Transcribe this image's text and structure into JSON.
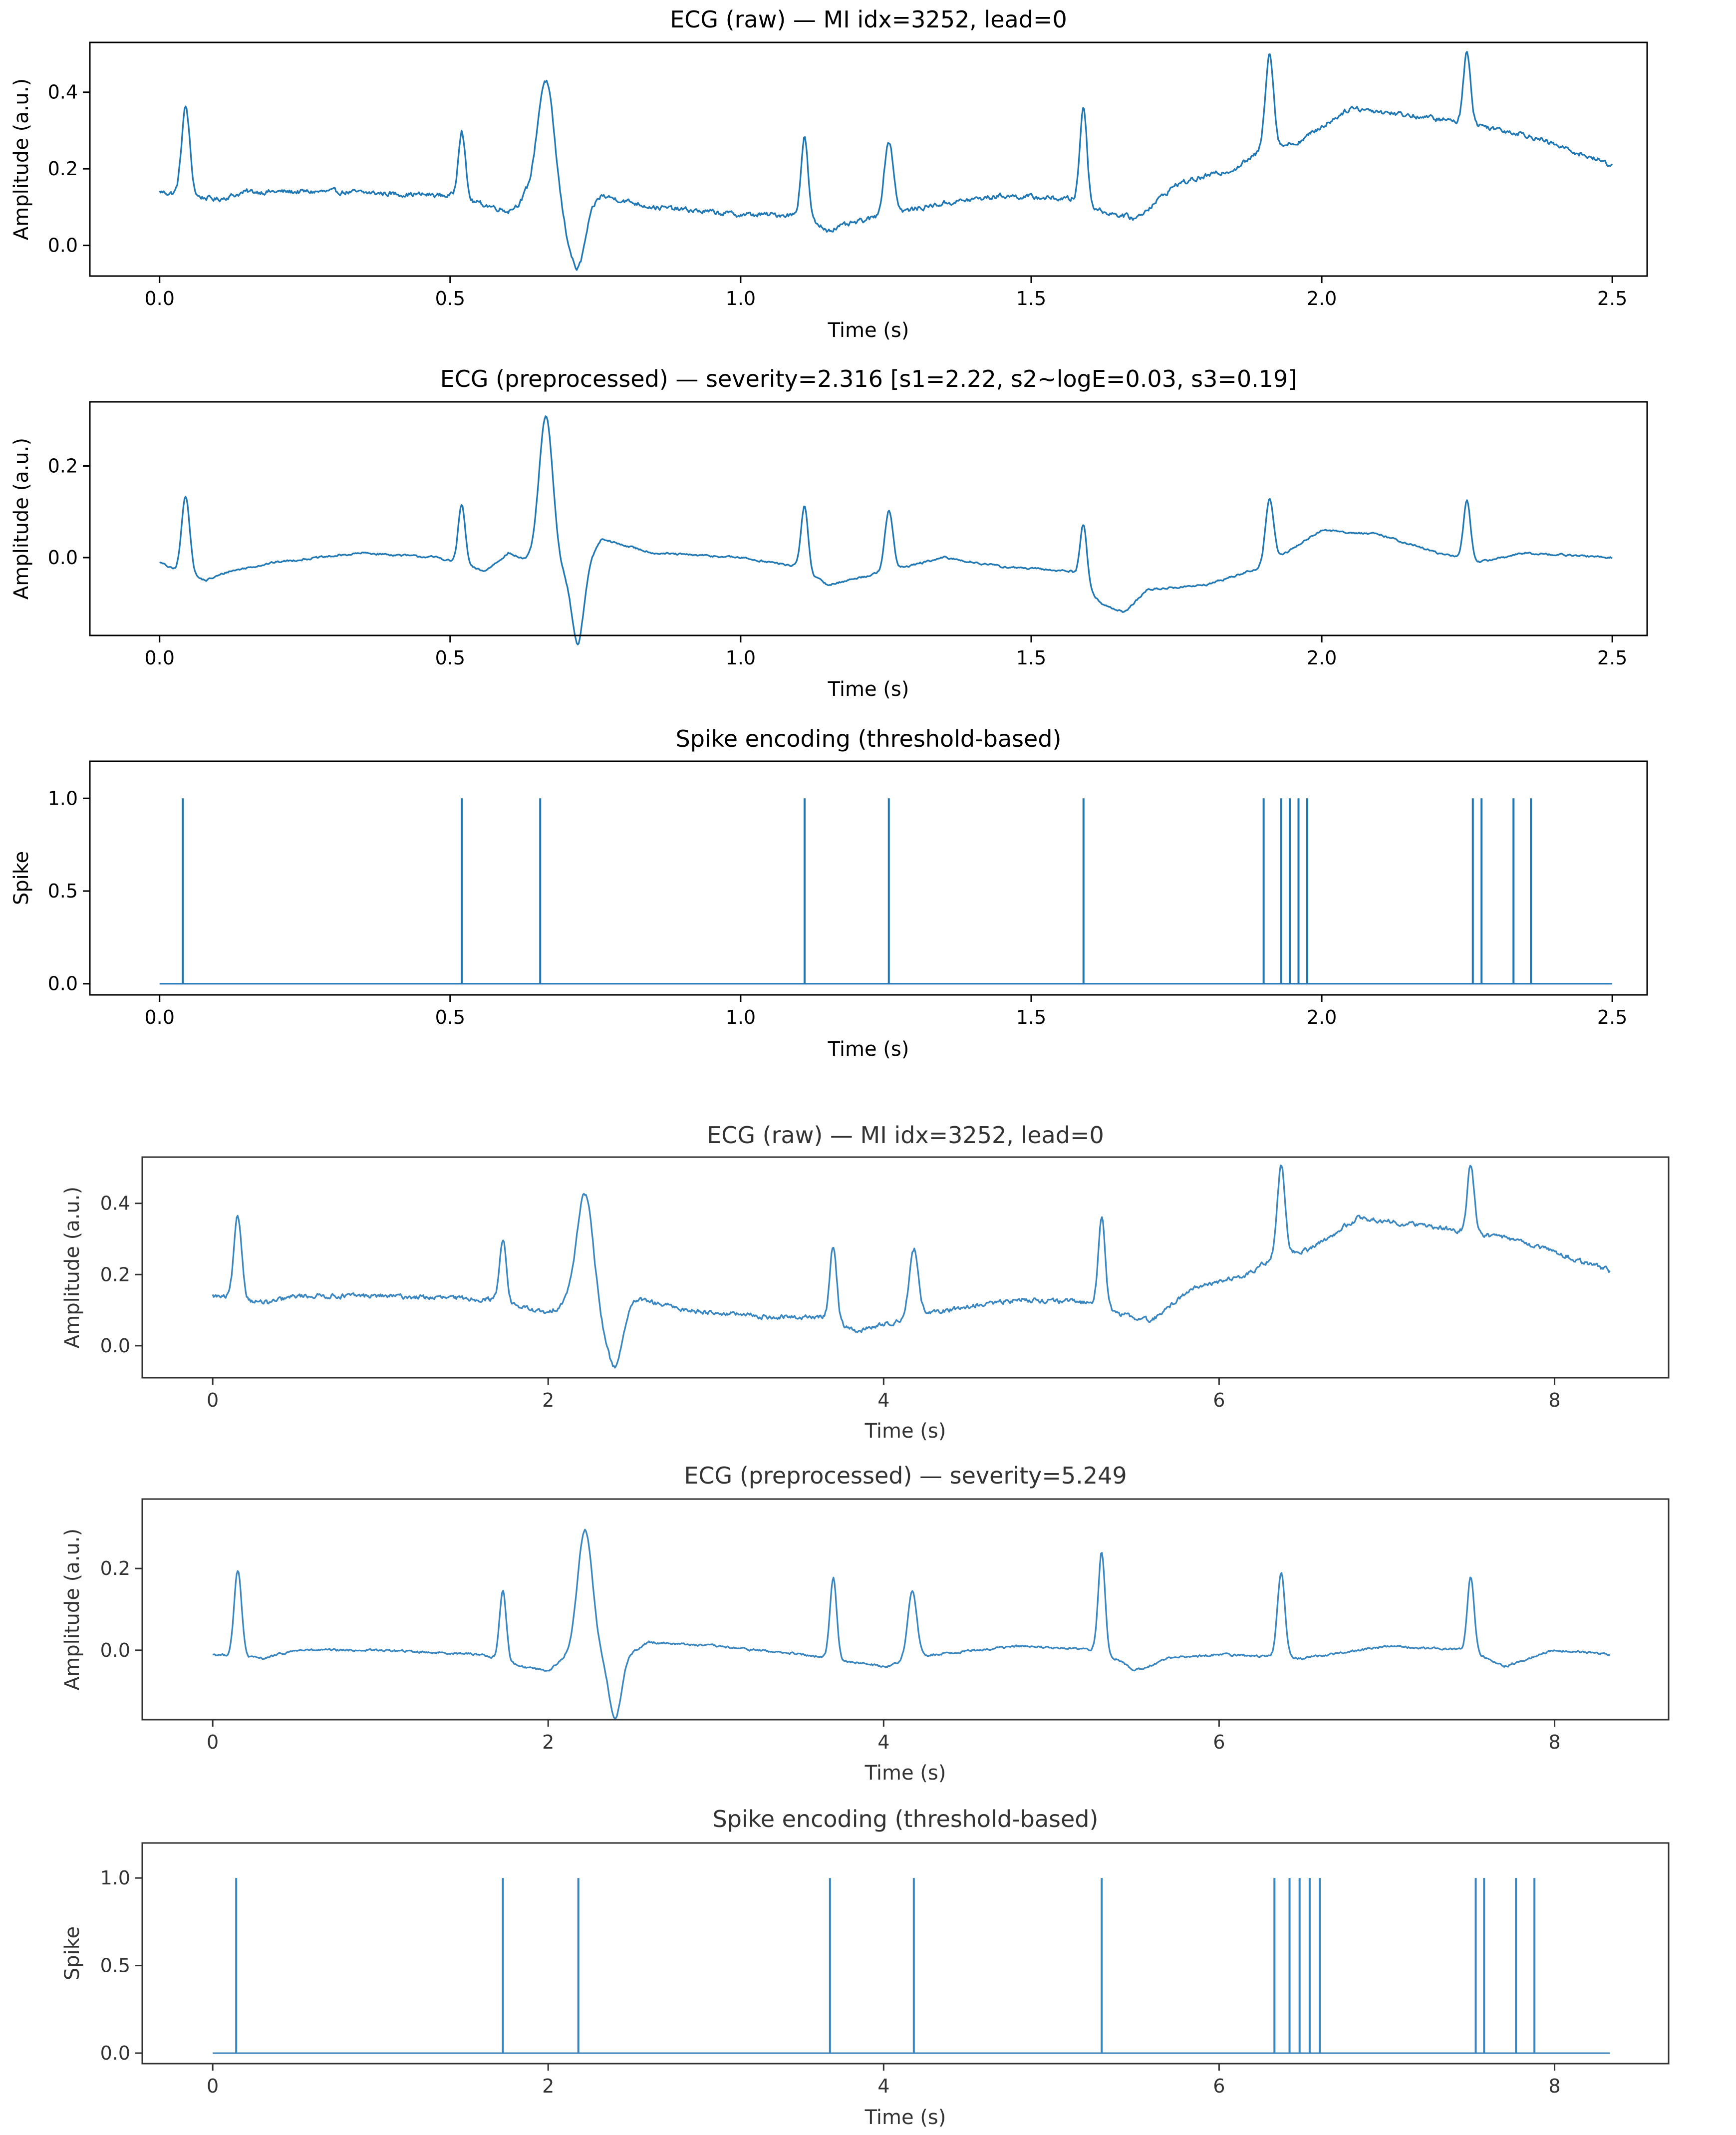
{
  "colors": {
    "line": "#1f77b4",
    "line_soft": "#3a86c0",
    "axes": "#000000",
    "background": "#ffffff"
  },
  "chart_data": [
    {
      "type": "line",
      "id": "top_raw",
      "title": "ECG (raw) — MI idx=3252, lead=0",
      "xlabel": "Time (s)",
      "ylabel": "Amplitude (a.u.)",
      "xlim": [
        -0.12,
        2.56
      ],
      "ylim": [
        -0.08,
        0.53
      ],
      "xticks": [
        0.0,
        0.5,
        1.0,
        1.5,
        2.0,
        2.5
      ],
      "xtick_labels": [
        "0.0",
        "0.5",
        "1.0",
        "1.5",
        "2.0",
        "2.5"
      ],
      "yticks": [
        0.0,
        0.2,
        0.4
      ],
      "ytick_labels": [
        "0.0",
        "0.2",
        "0.4"
      ],
      "x_end": 2.5,
      "noise": 0.012,
      "baseline": [
        [
          0,
          0.14
        ],
        [
          0.05,
          0.13
        ],
        [
          0.1,
          0.12
        ],
        [
          0.15,
          0.14
        ],
        [
          0.3,
          0.14
        ],
        [
          0.5,
          0.13
        ],
        [
          0.55,
          0.11
        ],
        [
          0.6,
          0.09
        ],
        [
          0.63,
          0.12
        ],
        [
          0.7,
          0.04
        ],
        [
          0.76,
          0.13
        ],
        [
          0.85,
          0.1
        ],
        [
          1.0,
          0.08
        ],
        [
          1.1,
          0.08
        ],
        [
          1.15,
          0.04
        ],
        [
          1.25,
          0.08
        ],
        [
          1.35,
          0.11
        ],
        [
          1.45,
          0.13
        ],
        [
          1.58,
          0.12
        ],
        [
          1.62,
          0.09
        ],
        [
          1.68,
          0.07
        ],
        [
          1.75,
          0.16
        ],
        [
          1.85,
          0.2
        ],
        [
          1.9,
          0.25
        ],
        [
          1.96,
          0.27
        ],
        [
          2.0,
          0.31
        ],
        [
          2.05,
          0.36
        ],
        [
          2.15,
          0.34
        ],
        [
          2.25,
          0.32
        ],
        [
          2.35,
          0.29
        ],
        [
          2.5,
          0.21
        ]
      ],
      "peaks": [
        [
          0.045,
          0.23,
          0.007
        ],
        [
          0.52,
          0.18,
          0.006
        ],
        [
          0.665,
          0.35,
          0.015
        ],
        [
          0.72,
          -0.13,
          0.012
        ],
        [
          1.11,
          0.21,
          0.006
        ],
        [
          1.255,
          0.19,
          0.008
        ],
        [
          1.59,
          0.25,
          0.006
        ],
        [
          1.91,
          0.25,
          0.007
        ],
        [
          2.25,
          0.19,
          0.006
        ]
      ]
    },
    {
      "type": "line",
      "id": "top_pre",
      "title": "ECG (preprocessed) — severity=2.316  [s1=2.22, s2~logE=0.03, s3=0.19]",
      "xlabel": "Time (s)",
      "ylabel": "Amplitude (a.u.)",
      "xlim": [
        -0.12,
        2.56
      ],
      "ylim": [
        -0.17,
        0.34
      ],
      "xticks": [
        0.0,
        0.5,
        1.0,
        1.5,
        2.0,
        2.5
      ],
      "xtick_labels": [
        "0.0",
        "0.5",
        "1.0",
        "1.5",
        "2.0",
        "2.5"
      ],
      "yticks": [
        0.0,
        0.2
      ],
      "ytick_labels": [
        "0.0",
        "0.2"
      ],
      "x_end": 2.5,
      "noise": 0.004,
      "baseline": [
        [
          0,
          -0.01
        ],
        [
          0.03,
          -0.03
        ],
        [
          0.08,
          -0.05
        ],
        [
          0.12,
          -0.03
        ],
        [
          0.2,
          -0.01
        ],
        [
          0.35,
          0.01
        ],
        [
          0.48,
          0.0
        ],
        [
          0.56,
          -0.03
        ],
        [
          0.6,
          0.01
        ],
        [
          0.72,
          -0.05
        ],
        [
          0.76,
          0.04
        ],
        [
          0.85,
          0.01
        ],
        [
          1.0,
          0.0
        ],
        [
          1.1,
          -0.02
        ],
        [
          1.15,
          -0.06
        ],
        [
          1.25,
          -0.03
        ],
        [
          1.35,
          0.0
        ],
        [
          1.45,
          -0.02
        ],
        [
          1.57,
          -0.03
        ],
        [
          1.62,
          -0.1
        ],
        [
          1.66,
          -0.12
        ],
        [
          1.7,
          -0.07
        ],
        [
          1.8,
          -0.06
        ],
        [
          1.9,
          -0.02
        ],
        [
          2.0,
          0.06
        ],
        [
          2.1,
          0.05
        ],
        [
          2.2,
          0.01
        ],
        [
          2.27,
          -0.01
        ],
        [
          2.35,
          0.01
        ],
        [
          2.5,
          0.0
        ]
      ],
      "peaks": [
        [
          0.045,
          0.17,
          0.007
        ],
        [
          0.52,
          0.13,
          0.006
        ],
        [
          0.665,
          0.33,
          0.012
        ],
        [
          0.72,
          -0.14,
          0.01
        ],
        [
          1.11,
          0.14,
          0.006
        ],
        [
          1.255,
          0.13,
          0.007
        ],
        [
          1.59,
          0.13,
          0.006
        ],
        [
          1.91,
          0.14,
          0.007
        ],
        [
          2.25,
          0.13,
          0.006
        ]
      ]
    },
    {
      "type": "line",
      "id": "top_spike",
      "title": "Spike encoding (threshold-based)",
      "xlabel": "Time (s)",
      "ylabel": "Spike",
      "xlim": [
        -0.12,
        2.56
      ],
      "ylim": [
        -0.06,
        1.2
      ],
      "xticks": [
        0.0,
        0.5,
        1.0,
        1.5,
        2.0,
        2.5
      ],
      "xtick_labels": [
        "0.0",
        "0.5",
        "1.0",
        "1.5",
        "2.0",
        "2.5"
      ],
      "yticks": [
        0.0,
        0.5,
        1.0
      ],
      "ytick_labels": [
        "0.0",
        "0.5",
        "1.0"
      ],
      "x_end": 2.5,
      "spikes": [
        0.04,
        0.52,
        0.655,
        1.11,
        1.255,
        1.59,
        1.9,
        1.93,
        1.945,
        1.96,
        1.975,
        2.26,
        2.275,
        2.33,
        2.36
      ]
    },
    {
      "type": "line",
      "id": "bottom_raw",
      "title": "ECG (raw) — MI idx=3252, lead=0",
      "xlabel": "Time (s)",
      "ylabel": "Amplitude (a.u.)",
      "xlim": [
        -0.42,
        8.68
      ],
      "ylim": [
        -0.09,
        0.53
      ],
      "xticks": [
        0,
        2,
        4,
        6,
        8
      ],
      "xtick_labels": [
        "0",
        "2",
        "4",
        "6",
        "8"
      ],
      "yticks": [
        0.0,
        0.2,
        0.4
      ],
      "ytick_labels": [
        "0.0",
        "0.2",
        "0.4"
      ],
      "x_end": 8.33,
      "noise": 0.012,
      "baseline": [
        [
          0,
          0.14
        ],
        [
          0.17,
          0.13
        ],
        [
          0.33,
          0.12
        ],
        [
          0.5,
          0.14
        ],
        [
          1.0,
          0.14
        ],
        [
          1.67,
          0.13
        ],
        [
          1.83,
          0.11
        ],
        [
          2.0,
          0.09
        ],
        [
          2.1,
          0.12
        ],
        [
          2.33,
          0.04
        ],
        [
          2.53,
          0.13
        ],
        [
          2.83,
          0.1
        ],
        [
          3.33,
          0.08
        ],
        [
          3.67,
          0.08
        ],
        [
          3.83,
          0.04
        ],
        [
          4.17,
          0.08
        ],
        [
          4.5,
          0.11
        ],
        [
          4.83,
          0.13
        ],
        [
          5.27,
          0.12
        ],
        [
          5.4,
          0.09
        ],
        [
          5.6,
          0.07
        ],
        [
          5.83,
          0.16
        ],
        [
          6.17,
          0.2
        ],
        [
          6.33,
          0.25
        ],
        [
          6.53,
          0.27
        ],
        [
          6.67,
          0.31
        ],
        [
          6.83,
          0.36
        ],
        [
          7.17,
          0.34
        ],
        [
          7.5,
          0.32
        ],
        [
          7.83,
          0.29
        ],
        [
          8.33,
          0.21
        ]
      ],
      "peaks": [
        [
          0.15,
          0.23,
          0.023
        ],
        [
          1.73,
          0.18,
          0.02
        ],
        [
          2.22,
          0.35,
          0.05
        ],
        [
          2.4,
          -0.13,
          0.04
        ],
        [
          3.7,
          0.21,
          0.02
        ],
        [
          4.18,
          0.19,
          0.027
        ],
        [
          5.3,
          0.25,
          0.02
        ],
        [
          6.37,
          0.25,
          0.023
        ],
        [
          7.5,
          0.19,
          0.02
        ]
      ]
    },
    {
      "type": "line",
      "id": "bottom_pre",
      "title": "ECG (preprocessed) — severity=5.249",
      "xlabel": "Time (s)",
      "ylabel": "Amplitude (a.u.)",
      "xlim": [
        -0.42,
        8.68
      ],
      "ylim": [
        -0.17,
        0.37
      ],
      "xticks": [
        0,
        2,
        4,
        6,
        8
      ],
      "xtick_labels": [
        "0",
        "2",
        "4",
        "6",
        "8"
      ],
      "yticks": [
        0.0,
        0.2
      ],
      "ytick_labels": [
        "0.0",
        "0.2"
      ],
      "x_end": 8.33,
      "noise": 0.005,
      "baseline": [
        [
          0,
          -0.01
        ],
        [
          0.3,
          -0.02
        ],
        [
          0.5,
          0.0
        ],
        [
          1.0,
          0.0
        ],
        [
          1.6,
          -0.01
        ],
        [
          1.85,
          -0.04
        ],
        [
          2.0,
          -0.05
        ],
        [
          2.1,
          -0.02
        ],
        [
          2.4,
          -0.03
        ],
        [
          2.6,
          0.02
        ],
        [
          3.0,
          0.01
        ],
        [
          3.5,
          -0.01
        ],
        [
          4.0,
          -0.04
        ],
        [
          4.3,
          -0.01
        ],
        [
          4.8,
          0.01
        ],
        [
          5.3,
          0.0
        ],
        [
          5.5,
          -0.05
        ],
        [
          5.7,
          -0.02
        ],
        [
          6.0,
          -0.01
        ],
        [
          6.5,
          -0.02
        ],
        [
          7.0,
          0.01
        ],
        [
          7.5,
          0.0
        ],
        [
          7.7,
          -0.04
        ],
        [
          8.0,
          0.0
        ],
        [
          8.33,
          -0.01
        ]
      ],
      "peaks": [
        [
          0.15,
          0.21,
          0.022
        ],
        [
          1.73,
          0.17,
          0.02
        ],
        [
          2.22,
          0.32,
          0.045
        ],
        [
          2.4,
          -0.14,
          0.035
        ],
        [
          3.7,
          0.2,
          0.02
        ],
        [
          4.17,
          0.17,
          0.027
        ],
        [
          5.3,
          0.24,
          0.02
        ],
        [
          6.37,
          0.21,
          0.022
        ],
        [
          7.5,
          0.18,
          0.02
        ]
      ]
    },
    {
      "type": "line",
      "id": "bottom_spike",
      "title": "Spike encoding (threshold-based)",
      "xlabel": "Time (s)",
      "ylabel": "Spike",
      "xlim": [
        -0.42,
        8.68
      ],
      "ylim": [
        -0.06,
        1.2
      ],
      "xticks": [
        0,
        2,
        4,
        6,
        8
      ],
      "xtick_labels": [
        "0",
        "2",
        "4",
        "6",
        "8"
      ],
      "yticks": [
        0.0,
        0.5,
        1.0
      ],
      "ytick_labels": [
        "0.0",
        "0.5",
        "1.0"
      ],
      "x_end": 8.33,
      "spikes": [
        0.14,
        1.73,
        2.18,
        3.68,
        4.18,
        5.3,
        6.33,
        6.42,
        6.48,
        6.54,
        6.6,
        7.53,
        7.58,
        7.77,
        7.88
      ]
    }
  ]
}
